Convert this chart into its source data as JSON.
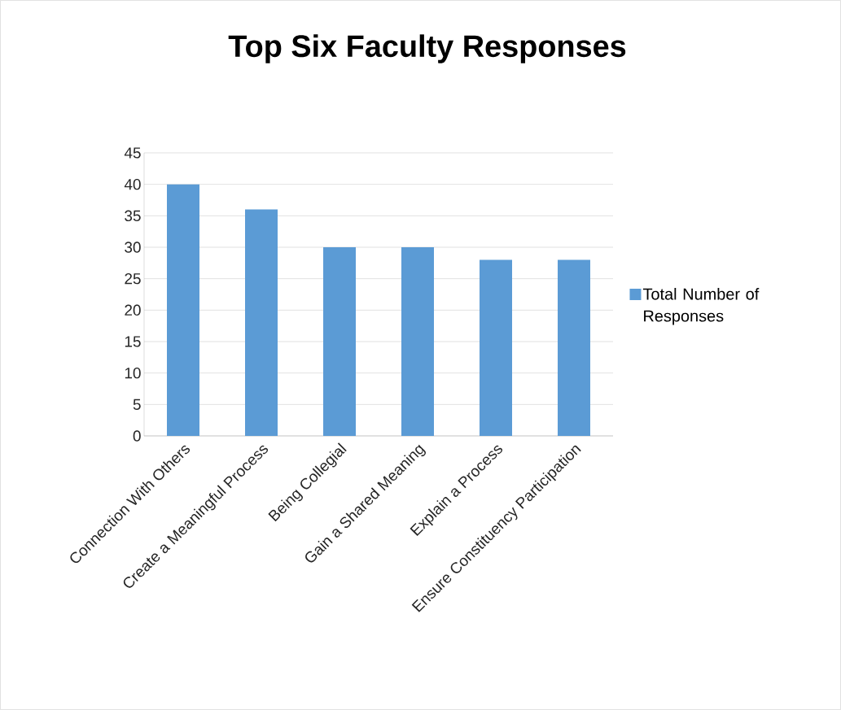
{
  "chart_data": {
    "type": "bar",
    "title": "Top Six Faculty Responses",
    "categories": [
      "Connection With Others",
      "Create a Meaningful Process",
      "Being Collegial",
      "Gain a Shared Meaning",
      "Explain a Process",
      "Ensure Constituency Participation"
    ],
    "series": [
      {
        "name": "Total Number of Responses",
        "color": "#5b9bd5",
        "values": [
          40,
          36,
          30,
          30,
          28,
          28
        ]
      }
    ],
    "ylim": [
      0,
      45
    ],
    "yticks": [
      0,
      5,
      10,
      15,
      20,
      25,
      30,
      35,
      40,
      45
    ],
    "grid": "y",
    "legend": "right"
  }
}
